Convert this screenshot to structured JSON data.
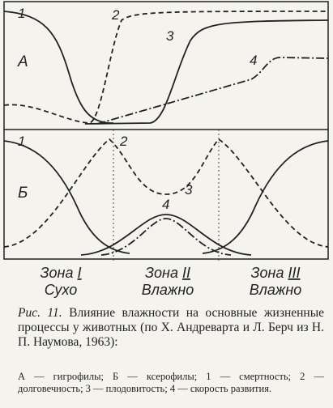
{
  "panels": [
    {
      "label": "А",
      "curve_labels": [
        "1",
        "2",
        "3",
        "4"
      ]
    },
    {
      "label": "Б",
      "curve_labels": [
        "1",
        "2",
        "3",
        "4"
      ]
    }
  ],
  "zones": [
    {
      "word": "Зона",
      "numeral": "I",
      "condition": "Сухо"
    },
    {
      "word": "Зона",
      "numeral": "II",
      "condition": "Влажно"
    },
    {
      "word": "Зона",
      "numeral": "III",
      "condition": "Влажно"
    }
  ],
  "caption": {
    "figure": "Рис. 11.",
    "text": "Влияние влажности на основные жизненные процессы у животных (по Х. Андреварта и Л. Берч из Н. П. Наумова, 1963):"
  },
  "legend": {
    "text": "А — гигрофилы; Б — ксерофилы; 1 — смертность; 2 — долговечность; 3 — плодовитость; 4 — скорость развития."
  }
}
